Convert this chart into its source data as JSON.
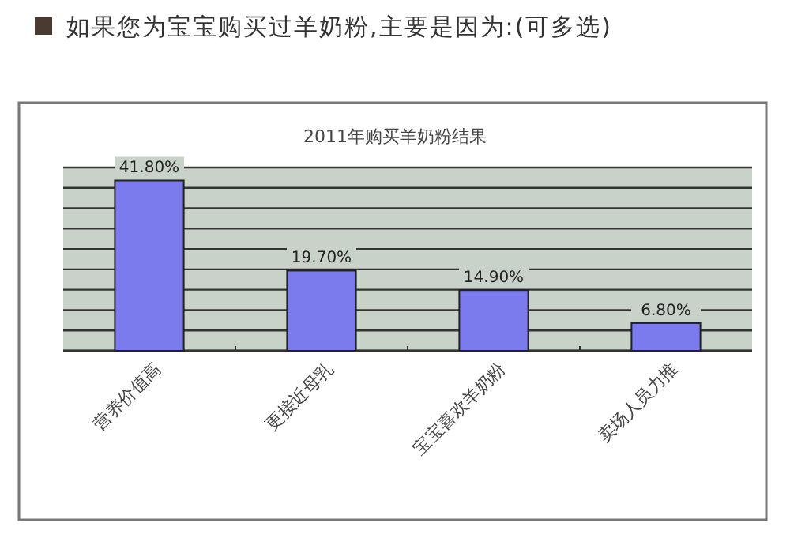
{
  "chart_data": {
    "type": "bar",
    "title": "如果您为宝宝购买过羊奶粉,主要是因为:(可多选)",
    "subtitle": "2011年购买羊奶粉结果",
    "categories": [
      "营养价值高",
      "更接近母乳",
      "宝宝喜欢羊奶粉",
      "卖场人员力推"
    ],
    "values": [
      41.8,
      19.7,
      14.9,
      6.8
    ],
    "color": "#7b7bee",
    "value_labels": [
      "41.80%",
      "19.70%",
      "14.90%",
      "6.80%"
    ],
    "ylim": [
      0,
      45
    ],
    "yticks": [
      {
        "value": 0,
        "label": null
      },
      {
        "value": 5,
        "label": null
      },
      {
        "value": 10,
        "label": null
      },
      {
        "value": 15,
        "label": null
      },
      {
        "value": 20,
        "label": null
      },
      {
        "value": 25,
        "label": null
      },
      {
        "value": 30,
        "label": null
      },
      {
        "value": 35,
        "label": null
      },
      {
        "value": 40,
        "label": null
      },
      {
        "value": 45,
        "label": null
      }
    ],
    "grid": "y",
    "tick_labels": "x"
  }
}
